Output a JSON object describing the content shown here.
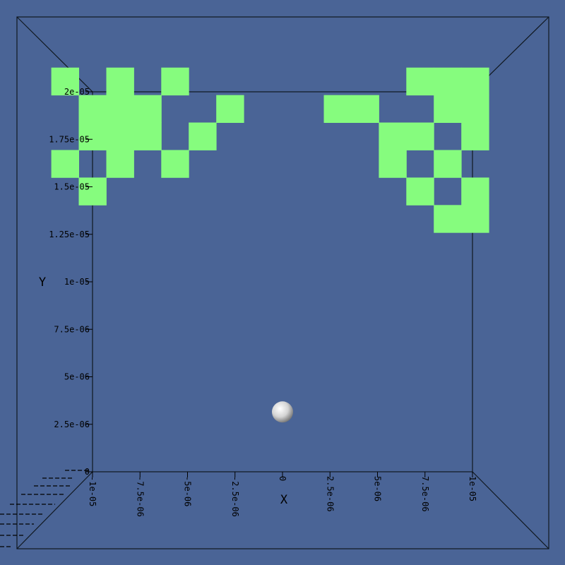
{
  "chart_data": {
    "type": "heatmap",
    "title": "",
    "xlabel": "X",
    "ylabel": "Y",
    "xlim": [
      -1e-05,
      1e-05
    ],
    "ylim": [
      0,
      2e-05
    ],
    "colors": {
      "background": "#4a6496",
      "cells": "#86fc7e",
      "frame": "#101820",
      "text": "#000000",
      "sphere": "#d8d8d8"
    },
    "x_ticks": [
      {
        "value": -1e-05,
        "label": "-1e-05"
      },
      {
        "value": -7.5e-06,
        "label": "-7.5e-06"
      },
      {
        "value": -5e-06,
        "label": "-5e-06"
      },
      {
        "value": -2.5e-06,
        "label": "-2.5e-06"
      },
      {
        "value": 0,
        "label": "0"
      },
      {
        "value": 2.5e-06,
        "label": "2.5e-06"
      },
      {
        "value": 5e-06,
        "label": "5e-06"
      },
      {
        "value": 7.5e-06,
        "label": "7.5e-06"
      },
      {
        "value": 1e-05,
        "label": "1e-05"
      }
    ],
    "y_ticks": [
      {
        "value": 0,
        "label": "0"
      },
      {
        "value": 2.5e-06,
        "label": "2.5e-06"
      },
      {
        "value": 5e-06,
        "label": "5e-06"
      },
      {
        "value": 7.5e-06,
        "label": "7.5e-06"
      },
      {
        "value": 1e-05,
        "label": "1e-05"
      },
      {
        "value": 1.25e-05,
        "label": "1.25e-05"
      },
      {
        "value": 1.5e-05,
        "label": "1.5e-05"
      },
      {
        "value": 1.75e-05,
        "label": "1.75e-05"
      },
      {
        "value": 2e-05,
        "label": "2e-05"
      }
    ],
    "cell_size": 1.447e-06,
    "cells": [
      {
        "x": -1.1447e-05,
        "y": 2.0553e-05
      },
      {
        "x": -8.553e-06,
        "y": 2.0553e-05
      },
      {
        "x": -5.659e-06,
        "y": 2.0553e-05
      },
      {
        "x": -1e-05,
        "y": 1.9106e-05
      },
      {
        "x": -8.553e-06,
        "y": 1.9106e-05
      },
      {
        "x": -7.106e-06,
        "y": 1.9106e-05
      },
      {
        "x": -2.765e-06,
        "y": 1.9106e-05
      },
      {
        "x": -1e-05,
        "y": 1.7659e-05
      },
      {
        "x": -8.553e-06,
        "y": 1.7659e-05
      },
      {
        "x": -7.106e-06,
        "y": 1.7659e-05
      },
      {
        "x": -4.212e-06,
        "y": 1.7659e-05
      },
      {
        "x": -1.1447e-05,
        "y": 1.6212e-05
      },
      {
        "x": -8.553e-06,
        "y": 1.6212e-05
      },
      {
        "x": -5.659e-06,
        "y": 1.6212e-05
      },
      {
        "x": -1e-05,
        "y": 1.4765e-05
      },
      {
        "x": 2.9e-06,
        "y": 1.9106e-05
      },
      {
        "x": 4.347e-06,
        "y": 1.9106e-05
      },
      {
        "x": 7.241e-06,
        "y": 2.0553e-05
      },
      {
        "x": 8.688e-06,
        "y": 2.0553e-05
      },
      {
        "x": 1.0135e-05,
        "y": 2.0553e-05
      },
      {
        "x": 8.688e-06,
        "y": 1.9106e-05
      },
      {
        "x": 1.0135e-05,
        "y": 1.9106e-05
      },
      {
        "x": 5.794e-06,
        "y": 1.7659e-05
      },
      {
        "x": 7.241e-06,
        "y": 1.7659e-05
      },
      {
        "x": 1.0135e-05,
        "y": 1.7659e-05
      },
      {
        "x": 5.794e-06,
        "y": 1.6212e-05
      },
      {
        "x": 8.688e-06,
        "y": 1.6212e-05
      },
      {
        "x": 7.241e-06,
        "y": 1.4765e-05
      },
      {
        "x": 1.0135e-05,
        "y": 1.4765e-05
      },
      {
        "x": 8.688e-06,
        "y": 1.3318e-05
      },
      {
        "x": 1.0135e-05,
        "y": 1.3318e-05
      }
    ],
    "marker": {
      "x": 0,
      "y": 3.15e-06
    }
  }
}
